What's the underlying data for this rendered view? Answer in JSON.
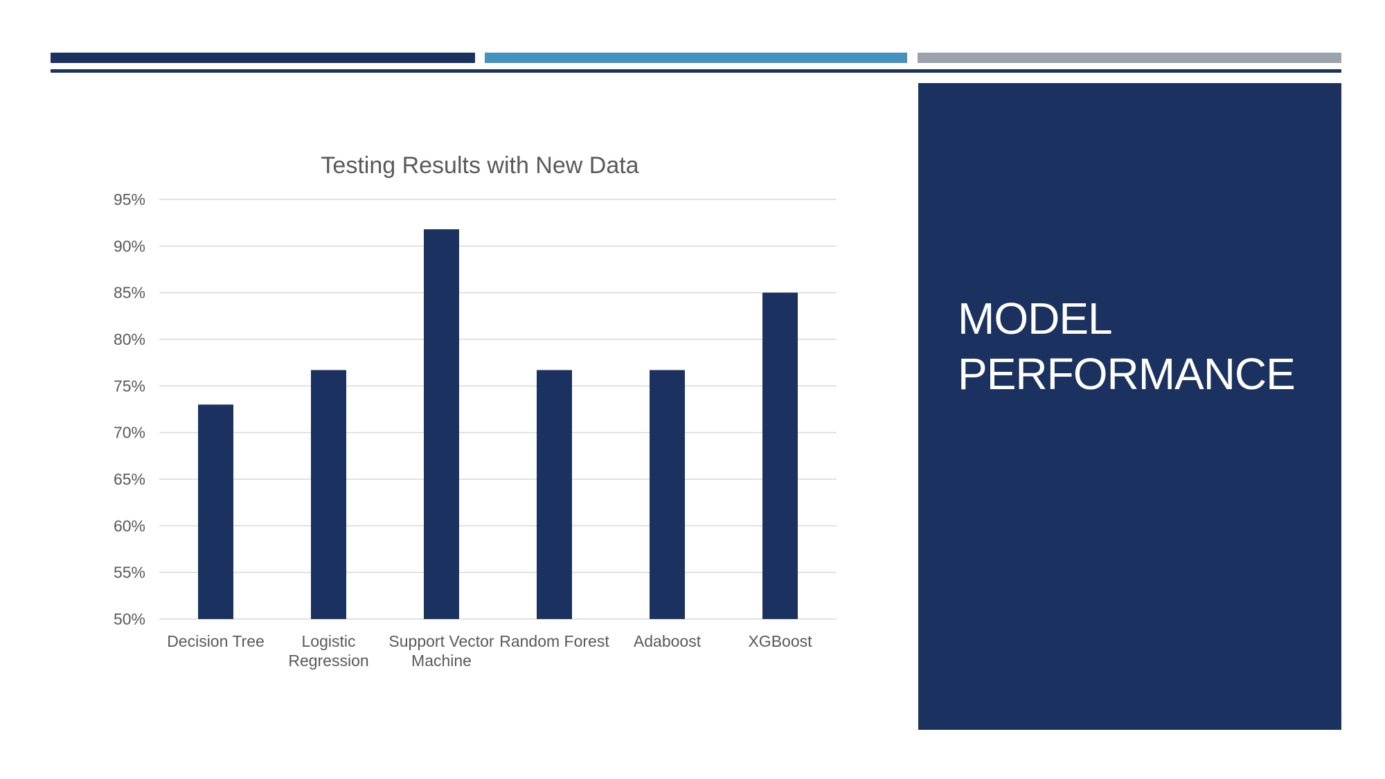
{
  "slide": {
    "title": "MODEL\nPERFORMANCE"
  },
  "colors": {
    "navy": "#1b3160",
    "blue": "#4591bf",
    "gray": "#9aa2ac",
    "gridline": "#d9d9d9",
    "text": "#595959"
  },
  "chart_data": {
    "type": "bar",
    "title": "Testing Results with New Data",
    "xlabel": "",
    "ylabel": "",
    "categories": [
      "Decision Tree",
      "Logistic Regression",
      "Support Vector Machine",
      "Random Forest",
      "Adaboost",
      "XGBoost"
    ],
    "category_lines": [
      [
        "Decision Tree"
      ],
      [
        "Logistic",
        "Regression"
      ],
      [
        "Support Vector",
        "Machine"
      ],
      [
        "Random Forest"
      ],
      [
        "Adaboost"
      ],
      [
        "XGBoost"
      ]
    ],
    "values": [
      0.73,
      0.767,
      0.918,
      0.767,
      0.767,
      0.85
    ],
    "ylim": [
      0.5,
      0.95
    ],
    "yticks": [
      0.5,
      0.55,
      0.6,
      0.65,
      0.7,
      0.75,
      0.8,
      0.85,
      0.9,
      0.95
    ],
    "ytick_labels": [
      "50%",
      "55%",
      "60%",
      "65%",
      "70%",
      "75%",
      "80%",
      "85%",
      "90%",
      "95%"
    ],
    "grid": true,
    "legend": "none",
    "bar_color": "#1b3160"
  }
}
